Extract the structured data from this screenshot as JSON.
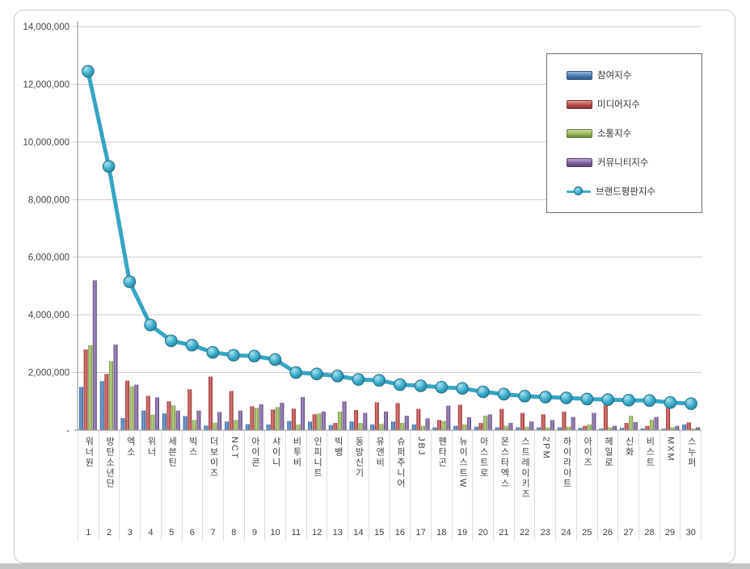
{
  "page": {
    "background": "#ffffff",
    "card_border": "#c9c9c9",
    "grid_color": "#cdcdcd",
    "axis_color": "#8c8c8c",
    "label_color": "#3d3d3d",
    "legend_border": "#6e6e6e",
    "footer_strip": "#c4c4c4"
  },
  "y_axis": {
    "tick_labels": [
      "-",
      "2,000,000",
      "4,000,000",
      "6,000,000",
      "8,000,000",
      "10,000,000",
      "12,000,000",
      "14,000,000"
    ]
  },
  "chart_data": {
    "type": "combo",
    "title": "",
    "xlabel": "",
    "ylabel": "",
    "grid": true,
    "legend_position": "top-right",
    "ylim": [
      0,
      14000000
    ],
    "y_tick_step": 2000000,
    "categories": [
      "워너원",
      "방탄소년단",
      "엑소",
      "위너",
      "세븐틴",
      "빅스",
      "더보이즈",
      "NCT",
      "아이콘",
      "샤이니",
      "비투비",
      "인피니트",
      "빅뱅",
      "동방신기",
      "유앤비",
      "슈퍼주니어",
      "JBJ",
      "펜타곤",
      "뉴이스트W",
      "아스트로",
      "몬스타엑스",
      "스트레이키즈",
      "2PM",
      "하이라이트",
      "아이즈",
      "헤일로",
      "신화",
      "비스트",
      "MXM",
      "스누퍼"
    ],
    "ranks": [
      1,
      2,
      3,
      4,
      5,
      6,
      7,
      8,
      9,
      10,
      11,
      12,
      13,
      14,
      15,
      16,
      17,
      18,
      19,
      20,
      21,
      22,
      23,
      24,
      25,
      26,
      27,
      28,
      29,
      30
    ],
    "series": [
      {
        "name": "참여지수",
        "type": "bar",
        "color": "#4A7EBB",
        "values": [
          1500000,
          1700000,
          420000,
          680000,
          580000,
          490000,
          160000,
          300000,
          210000,
          200000,
          320000,
          300000,
          180000,
          300000,
          200000,
          300000,
          200000,
          100000,
          150000,
          120000,
          100000,
          100000,
          100000,
          100000,
          80000,
          60000,
          80000,
          60000,
          50000,
          200000
        ]
      },
      {
        "name": "미디어지수",
        "type": "bar",
        "color": "#BE4B48",
        "values": [
          2800000,
          1950000,
          1720000,
          1190000,
          1000000,
          1420000,
          1860000,
          1360000,
          830000,
          720000,
          750000,
          550000,
          250000,
          700000,
          970000,
          940000,
          740000,
          350000,
          880000,
          250000,
          740000,
          600000,
          550000,
          640000,
          150000,
          880000,
          250000,
          150000,
          780000,
          270000
        ]
      },
      {
        "name": "소통지수",
        "type": "bar",
        "color": "#9ABA58",
        "values": [
          2950000,
          2400000,
          1520000,
          540000,
          860000,
          350000,
          260000,
          350000,
          770000,
          800000,
          200000,
          580000,
          650000,
          250000,
          220000,
          250000,
          150000,
          320000,
          200000,
          500000,
          150000,
          120000,
          100000,
          120000,
          200000,
          100000,
          500000,
          360000,
          100000,
          60000
        ]
      },
      {
        "name": "커뮤니티지수",
        "type": "bar",
        "color": "#7E62A1",
        "values": [
          5200000,
          2970000,
          1580000,
          1140000,
          680000,
          680000,
          630000,
          680000,
          900000,
          950000,
          1150000,
          650000,
          1000000,
          600000,
          650000,
          500000,
          410000,
          850000,
          450000,
          550000,
          250000,
          300000,
          350000,
          460000,
          600000,
          150000,
          280000,
          460000,
          150000,
          100000
        ]
      },
      {
        "name": "브랜드평판지수",
        "type": "line",
        "color": "#38AECE",
        "values": [
          12450000,
          9150000,
          5150000,
          3650000,
          3100000,
          2950000,
          2700000,
          2600000,
          2570000,
          2450000,
          2000000,
          1950000,
          1880000,
          1760000,
          1730000,
          1580000,
          1540000,
          1490000,
          1450000,
          1330000,
          1250000,
          1180000,
          1150000,
          1120000,
          1080000,
          1060000,
          1040000,
          1030000,
          960000,
          920000
        ]
      }
    ]
  }
}
